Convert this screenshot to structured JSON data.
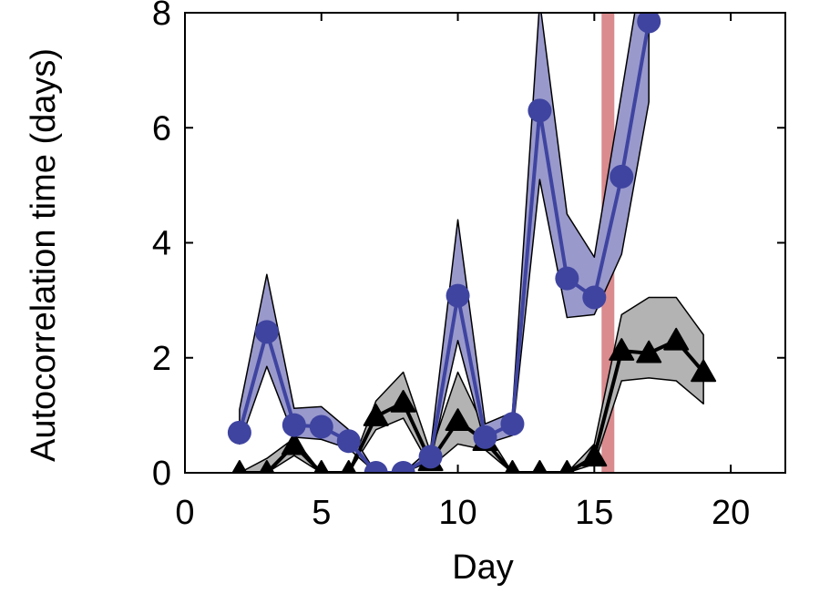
{
  "chart_data": {
    "type": "line",
    "xlabel": "Day",
    "ylabel": "Autocorrelation time (days)",
    "xlim": [
      0,
      22
    ],
    "ylim": [
      0,
      8
    ],
    "xticks": [
      0,
      5,
      10,
      15,
      20
    ],
    "yticks": [
      0,
      2,
      4,
      6,
      8
    ],
    "grid": false,
    "legend": "none",
    "highlight_band": {
      "x": 15.5,
      "color": "#d98b8e"
    },
    "series": [
      {
        "marker": "circle",
        "color": "#3f44a0",
        "band_color": "#9999cc",
        "x": [
          2,
          3,
          4,
          5,
          6,
          7,
          8,
          9,
          10,
          11,
          12,
          13,
          14,
          15,
          16,
          17
        ],
        "y": [
          0.7,
          2.45,
          0.83,
          0.8,
          0.55,
          0.0,
          0.0,
          0.28,
          3.08,
          0.62,
          0.85,
          6.3,
          3.38,
          3.05,
          5.15,
          7.85
        ],
        "lower": [
          0.5,
          1.85,
          0.62,
          0.58,
          0.42,
          0.0,
          0.0,
          0.2,
          2.3,
          0.5,
          0.65,
          5.1,
          2.7,
          2.75,
          3.8,
          6.45
        ],
        "upper": [
          1.1,
          3.45,
          1.12,
          1.15,
          0.75,
          0.0,
          0.0,
          0.42,
          4.4,
          0.85,
          1.05,
          8.2,
          4.5,
          3.75,
          6.6,
          9.5
        ]
      },
      {
        "marker": "triangle",
        "color": "#000000",
        "band_color": "#b3b3b3",
        "x": [
          2,
          3,
          4,
          5,
          6,
          7,
          8,
          9,
          10,
          11,
          12,
          13,
          14,
          15,
          16,
          17,
          18,
          19
        ],
        "y": [
          0.0,
          0.0,
          0.48,
          0.0,
          0.0,
          0.98,
          1.22,
          0.2,
          0.9,
          0.55,
          0.0,
          0.0,
          0.0,
          0.28,
          2.12,
          2.08,
          2.3,
          1.75
        ],
        "lower": [
          0.0,
          0.0,
          0.3,
          0.0,
          0.0,
          0.75,
          0.95,
          0.1,
          0.5,
          0.4,
          0.0,
          0.0,
          0.0,
          0.15,
          1.6,
          1.65,
          1.6,
          1.2
        ],
        "upper": [
          0.0,
          0.25,
          0.6,
          0.0,
          0.0,
          1.25,
          1.75,
          0.35,
          1.75,
          0.75,
          0.0,
          0.0,
          0.0,
          0.5,
          2.75,
          3.05,
          3.05,
          2.4
        ]
      }
    ]
  }
}
